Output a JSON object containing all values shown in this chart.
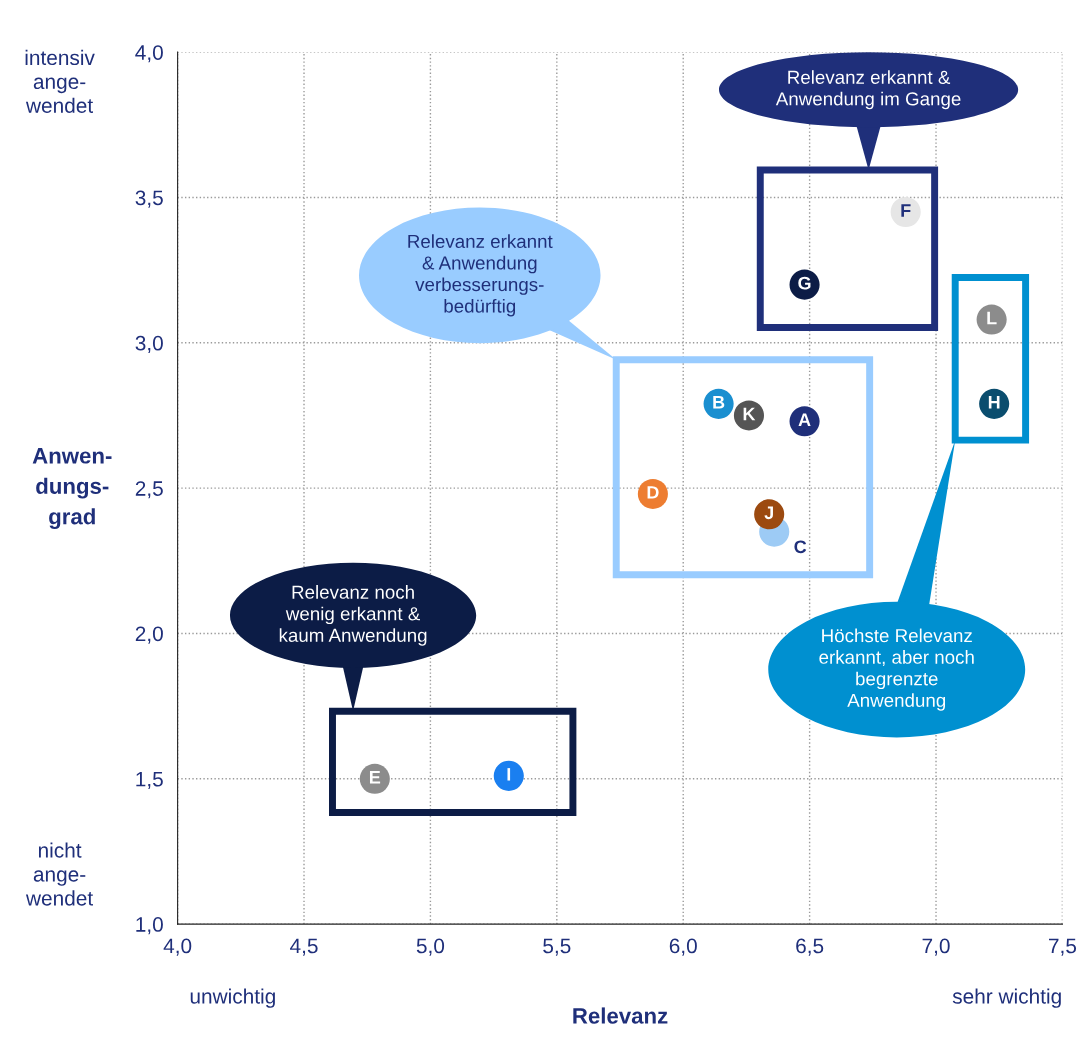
{
  "chart_data": {
    "type": "scatter",
    "xlabel": "Relevanz",
    "ylabel": "Anwen-\ndungs-\ngrad",
    "xlim": [
      4.0,
      7.5
    ],
    "ylim": [
      1.0,
      4.0
    ],
    "xticks": [
      {
        "value": 4.0,
        "label": "4,0"
      },
      {
        "value": 4.5,
        "label": "4,5"
      },
      {
        "value": 5.0,
        "label": "5,0"
      },
      {
        "value": 5.5,
        "label": "5,5"
      },
      {
        "value": 6.0,
        "label": "6,0"
      },
      {
        "value": 6.5,
        "label": "6,5"
      },
      {
        "value": 7.0,
        "label": "7,0"
      },
      {
        "value": 7.5,
        "label": "7,5"
      }
    ],
    "yticks": [
      {
        "value": 1.0,
        "label": "1,0"
      },
      {
        "value": 1.5,
        "label": "1,5"
      },
      {
        "value": 2.0,
        "label": "2,0"
      },
      {
        "value": 2.5,
        "label": "2,5"
      },
      {
        "value": 3.0,
        "label": "3,0"
      },
      {
        "value": 3.5,
        "label": "3,5"
      },
      {
        "value": 4.0,
        "label": "4,0"
      }
    ],
    "grid": true,
    "marker": "circle",
    "series": [
      {
        "name": "F",
        "color": "#e6e6e6",
        "x": [
          6.88
        ],
        "values": [
          3.45
        ]
      },
      {
        "name": "G",
        "color": "#0c1c46",
        "x": [
          6.48
        ],
        "values": [
          3.2
        ]
      },
      {
        "name": "L",
        "color": "#8c8c8c",
        "x": [
          7.22
        ],
        "values": [
          3.08
        ]
      },
      {
        "name": "H",
        "color": "#0a4d6e",
        "x": [
          7.23
        ],
        "values": [
          2.79
        ]
      },
      {
        "name": "B",
        "color": "#1a8fd0",
        "x": [
          6.14
        ],
        "values": [
          2.79
        ]
      },
      {
        "name": "K",
        "color": "#555555",
        "x": [
          6.26
        ],
        "values": [
          2.75
        ]
      },
      {
        "name": "A",
        "color": "#1f2f7a",
        "x": [
          6.48
        ],
        "values": [
          2.73
        ]
      },
      {
        "name": "D",
        "color": "#ed7d31",
        "x": [
          5.88
        ],
        "values": [
          2.48
        ]
      },
      {
        "name": "C",
        "color": "#9dcbf5",
        "x": [
          6.36
        ],
        "values": [
          2.35
        ]
      },
      {
        "name": "J",
        "color": "#9c4a10",
        "x": [
          6.34
        ],
        "values": [
          2.41
        ]
      },
      {
        "name": "E",
        "color": "#8c8c8c",
        "x": [
          4.78
        ],
        "values": [
          1.5
        ]
      },
      {
        "name": "I",
        "color": "#1a7ff0",
        "x": [
          5.31
        ],
        "values": [
          1.51
        ]
      }
    ],
    "annotations": [
      "Relevanz erkannt &\nAnwendung im Gange",
      "Relevanz erkannt\n& Anwendung\nverbesserungs-\nbedürftig",
      "Relevanz noch\nwenig erkannt &\nkaum Anwendung",
      "Höchste Relevanz\nerkannt, aber noch\nbegrenzte\nAnwendung",
      "intensiv\nange-\nwendet",
      "nicht\nange-\nwendet",
      "unwichtig",
      "sehr wichtig"
    ]
  }
}
